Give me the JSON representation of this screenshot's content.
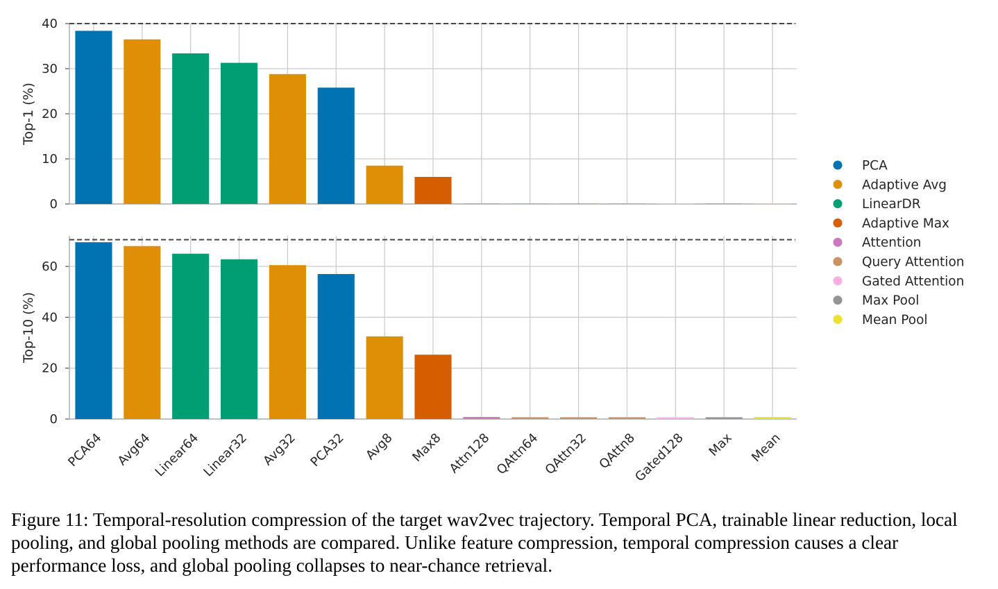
{
  "chart_data": [
    {
      "type": "bar",
      "ylabel": "Top-1 (%)",
      "ylim": [
        0,
        40
      ],
      "yticks": [
        0,
        10,
        20,
        30,
        40
      ],
      "grid": true,
      "reference_line": 40,
      "categories": [
        "PCA64",
        "Avg64",
        "Linear64",
        "Linear32",
        "Avg32",
        "PCA32",
        "Avg8",
        "Max8",
        "Attn128",
        "QAttn64",
        "QAttn32",
        "QAttn8",
        "Gated128",
        "Max",
        "Mean"
      ],
      "groups": [
        "PCA",
        "Adaptive Avg",
        "LinearDR",
        "LinearDR",
        "Adaptive Avg",
        "PCA",
        "Adaptive Avg",
        "Adaptive Max",
        "Attention",
        "Query Attention",
        "Query Attention",
        "Query Attention",
        "Gated Attention",
        "Max Pool",
        "Mean Pool"
      ],
      "values": [
        38.4,
        36.5,
        33.4,
        31.3,
        28.8,
        25.8,
        8.5,
        6.0,
        0.1,
        0.1,
        0.1,
        0.1,
        0.1,
        0.1,
        0.1
      ]
    },
    {
      "type": "bar",
      "ylabel": "Top-10 (%)",
      "ylim": [
        0,
        72
      ],
      "yticks": [
        0,
        20,
        40,
        60
      ],
      "grid": true,
      "reference_line": 70.5,
      "categories": [
        "PCA64",
        "Avg64",
        "Linear64",
        "Linear32",
        "Avg32",
        "PCA32",
        "Avg8",
        "Max8",
        "Attn128",
        "QAttn64",
        "QAttn32",
        "QAttn8",
        "Gated128",
        "Max",
        "Mean"
      ],
      "groups": [
        "PCA",
        "Adaptive Avg",
        "LinearDR",
        "LinearDR",
        "Adaptive Avg",
        "PCA",
        "Adaptive Avg",
        "Adaptive Max",
        "Attention",
        "Query Attention",
        "Query Attention",
        "Query Attention",
        "Gated Attention",
        "Max Pool",
        "Mean Pool"
      ],
      "values": [
        69.5,
        68.0,
        65.0,
        62.8,
        60.5,
        57.0,
        32.5,
        25.3,
        0.8,
        0.7,
        0.7,
        0.7,
        0.7,
        0.7,
        0.8
      ]
    }
  ],
  "legend": {
    "placement": "right",
    "items": [
      {
        "label": "PCA",
        "color": "#0173b2"
      },
      {
        "label": "Adaptive Avg",
        "color": "#de8f05"
      },
      {
        "label": "LinearDR",
        "color": "#029e73"
      },
      {
        "label": "Adaptive Max",
        "color": "#d55e00"
      },
      {
        "label": "Attention",
        "color": "#cc78bc"
      },
      {
        "label": "Query Attention",
        "color": "#ca9161"
      },
      {
        "label": "Gated Attention",
        "color": "#fbafe4"
      },
      {
        "label": "Max Pool",
        "color": "#949494"
      },
      {
        "label": "Mean Pool",
        "color": "#ece133"
      }
    ]
  },
  "caption": "Figure 11: Temporal-resolution compression of the target wav2vec trajectory. Temporal PCA, trainable linear reduction, local pooling, and global pooling methods are compared. Unlike feature compression, temporal compression causes a clear performance loss, and global pooling collapses to near-chance retrieval."
}
